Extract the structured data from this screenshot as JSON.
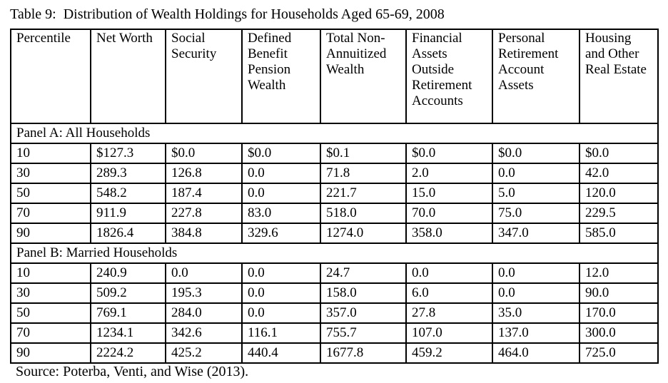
{
  "title": "Table 9:  Distribution of Wealth Holdings for Households Aged 65-69, 2008",
  "source": "Source: Poterba, Venti, and Wise (2013).",
  "table": {
    "columns": [
      "Percentile",
      "Net Worth",
      "Social Security",
      "Defined Benefit Pension Wealth",
      "Total Non-Annuitized Wealth",
      "Financial Assets Outside Retirement Accounts",
      "Personal Retirement Account Assets",
      "Housing and Other Real Estate"
    ],
    "panels": [
      {
        "label": "Panel A: All Households",
        "rows": [
          [
            "10",
            "$127.3",
            "$0.0",
            "$0.0",
            "$0.1",
            "$0.0",
            "$0.0",
            "$0.0"
          ],
          [
            "30",
            "289.3",
            "126.8",
            "0.0",
            "71.8",
            "2.0",
            "0.0",
            "42.0"
          ],
          [
            "50",
            "548.2",
            "187.4",
            "0.0",
            "221.7",
            "15.0",
            "5.0",
            "120.0"
          ],
          [
            "70",
            "911.9",
            "227.8",
            "83.0",
            "518.0",
            "70.0",
            "75.0",
            "229.5"
          ],
          [
            "90",
            "1826.4",
            "384.8",
            "329.6",
            "1274.0",
            "358.0",
            "347.0",
            "585.0"
          ]
        ]
      },
      {
        "label": "Panel B: Married Households",
        "rows": [
          [
            "10",
            "240.9",
            "0.0",
            "0.0",
            "24.7",
            "0.0",
            "0.0",
            "12.0"
          ],
          [
            "30",
            "509.2",
            "195.3",
            "0.0",
            "158.0",
            "6.0",
            "0.0",
            "90.0"
          ],
          [
            "50",
            "769.1",
            "284.0",
            "0.0",
            "357.0",
            "27.8",
            "35.0",
            "170.0"
          ],
          [
            "70",
            "1234.1",
            "342.6",
            "116.1",
            "755.7",
            "107.0",
            "137.0",
            "300.0"
          ],
          [
            "90",
            "2224.2",
            "425.2",
            "440.4",
            "1677.8",
            "459.2",
            "464.0",
            "725.0"
          ]
        ]
      }
    ]
  },
  "chart_data": {
    "type": "table",
    "title": "Table 9:  Distribution of Wealth Holdings for Households Aged 65-69, 2008",
    "columns": [
      "Percentile",
      "Net Worth",
      "Social Security",
      "Defined Benefit Pension Wealth",
      "Total Non-Annuitized Wealth",
      "Financial Assets Outside Retirement Accounts",
      "Personal Retirement Account Assets",
      "Housing and Other Real Estate"
    ],
    "panel_a_all_households": {
      "percentiles": [
        10,
        30,
        50,
        70,
        90
      ],
      "net_worth": [
        127.3,
        289.3,
        548.2,
        911.9,
        1826.4
      ],
      "social_security": [
        0.0,
        126.8,
        187.4,
        227.8,
        384.8
      ],
      "defined_benefit_pension_wealth": [
        0.0,
        0.0,
        0.0,
        83.0,
        329.6
      ],
      "total_non_annuitized_wealth": [
        0.1,
        71.8,
        221.7,
        518.0,
        1274.0
      ],
      "financial_assets_outside_retirement_accounts": [
        0.0,
        2.0,
        15.0,
        70.0,
        358.0
      ],
      "personal_retirement_account_assets": [
        0.0,
        0.0,
        5.0,
        75.0,
        347.0
      ],
      "housing_and_other_real_estate": [
        0.0,
        42.0,
        120.0,
        229.5,
        585.0
      ]
    },
    "panel_b_married_households": {
      "percentiles": [
        10,
        30,
        50,
        70,
        90
      ],
      "net_worth": [
        240.9,
        509.2,
        769.1,
        1234.1,
        2224.2
      ],
      "social_security": [
        0.0,
        195.3,
        284.0,
        342.6,
        425.2
      ],
      "defined_benefit_pension_wealth": [
        0.0,
        0.0,
        0.0,
        116.1,
        440.4
      ],
      "total_non_annuitized_wealth": [
        24.7,
        158.0,
        357.0,
        755.7,
        1677.8
      ],
      "financial_assets_outside_retirement_accounts": [
        0.0,
        6.0,
        27.8,
        107.0,
        459.2
      ],
      "personal_retirement_account_assets": [
        0.0,
        0.0,
        35.0,
        137.0,
        464.0
      ],
      "housing_and_other_real_estate": [
        12.0,
        90.0,
        170.0,
        300.0,
        725.0
      ]
    },
    "source": "Source: Poterba, Venti, and Wise (2013)."
  }
}
